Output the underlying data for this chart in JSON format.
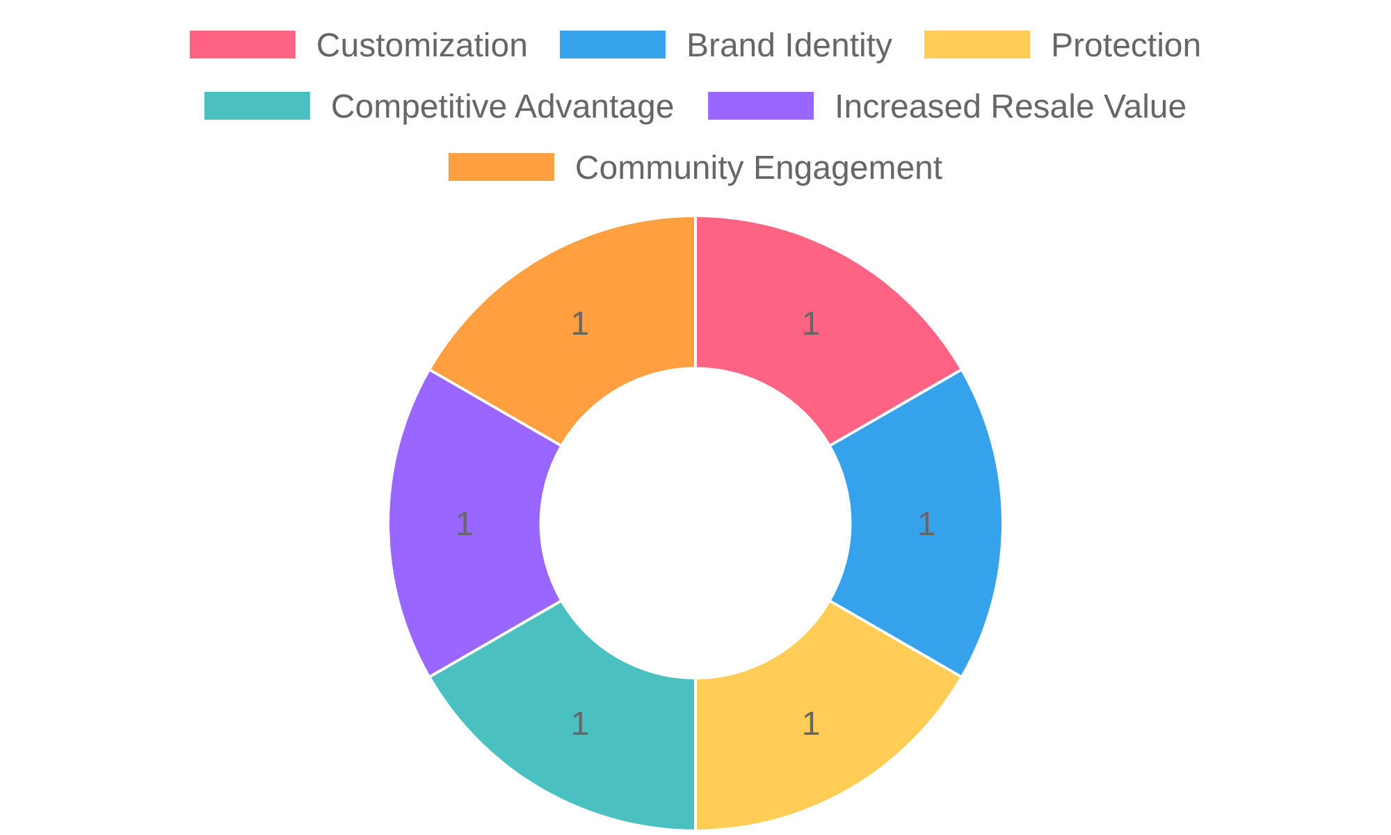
{
  "chart_data": {
    "type": "donut",
    "categories": [
      "Customization",
      "Brand Identity",
      "Protection",
      "Competitive Advantage",
      "Increased Resale Value",
      "Community Engagement"
    ],
    "values": [
      1,
      1,
      1,
      1,
      1,
      1
    ],
    "colors": [
      "#ff6384",
      "#36a2eb",
      "#ffcd56",
      "#4bc0c0",
      "#9966ff",
      "#ff9f40"
    ],
    "legend": "top",
    "data_labels": true
  }
}
